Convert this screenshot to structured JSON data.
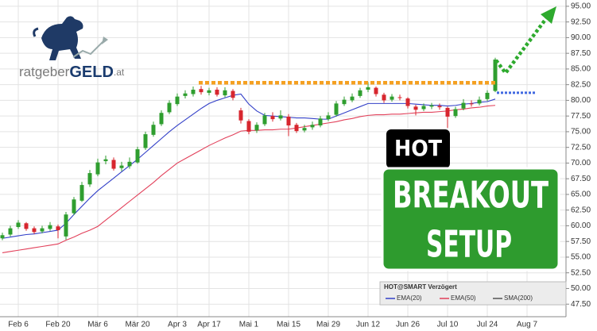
{
  "chart_data": {
    "type": "candlestick",
    "logo": {
      "part1": "ratgeber",
      "part2": "GELD",
      "part3": ".at"
    },
    "badge": "HOT",
    "headline": [
      "BREAKOUT",
      "SETUP"
    ],
    "legend_title": "HOT@SMART Verzögert",
    "categories": [
      null,
      null,
      "Feb 6",
      null,
      null,
      null,
      null,
      "Feb 20",
      null,
      null,
      null,
      null,
      "Mär 6",
      null,
      null,
      null,
      null,
      "Mär 20",
      null,
      null,
      null,
      null,
      "Apr 3",
      null,
      null,
      null,
      "Apr 17",
      null,
      null,
      null,
      null,
      "Mai 1",
      null,
      null,
      null,
      null,
      "Mai 15",
      null,
      null,
      null,
      null,
      "Mai 29",
      null,
      null,
      null,
      null,
      "Jun 12",
      null,
      null,
      null,
      null,
      "Jun 26",
      null,
      null,
      null,
      null,
      "Jul 10",
      null,
      null,
      null,
      null,
      "Jul 24",
      null,
      null,
      null,
      null,
      "Aug 7"
    ],
    "open": [
      58.0,
      58.6,
      59.8,
      60.4,
      59.6,
      59.1,
      59.5,
      59.9,
      58.3,
      62.0,
      64.0,
      66.6,
      68.2,
      70.3,
      70.5,
      69.2,
      69.5,
      70.1,
      72.4,
      74.5,
      76.2,
      78.1,
      79.4,
      80.7,
      81.0,
      81.8,
      81.2,
      81.7,
      80.8,
      81.5,
      78.4,
      76.7,
      75.2,
      76.2,
      77.5,
      77.1,
      77.4,
      76.1,
      75.2,
      75.7,
      76.0,
      77.0,
      77.7,
      79.4,
      80.0,
      80.7,
      81.7,
      82.0,
      80.9,
      80.1,
      80.5,
      80.3,
      79.0,
      78.6,
      79.0,
      79.1,
      78.8,
      77.5,
      78.7,
      79.5,
      79.5,
      80.2,
      81.5,
      null,
      null,
      null,
      null
    ],
    "high": [
      58.9,
      60.0,
      60.9,
      60.6,
      59.9,
      60.0,
      60.6,
      60.2,
      62.2,
      64.6,
      67.0,
      68.9,
      70.7,
      71.2,
      70.9,
      70.2,
      70.9,
      72.6,
      75.0,
      76.6,
      78.4,
      80.0,
      81.1,
      81.6,
      82.2,
      82.3,
      82.0,
      82.1,
      82.1,
      81.8,
      78.8,
      77.0,
      76.5,
      78.0,
      78.1,
      78.4,
      77.8,
      76.4,
      76.1,
      76.6,
      77.5,
      78.1,
      79.9,
      80.6,
      81.1,
      82.0,
      82.9,
      82.2,
      81.2,
      81.0,
      80.9,
      80.5,
      79.3,
      79.5,
      79.6,
      79.5,
      79.0,
      79.0,
      80.2,
      80.0,
      80.6,
      81.6,
      86.8,
      null,
      null,
      null,
      null
    ],
    "low": [
      57.7,
      58.3,
      59.5,
      59.2,
      58.7,
      58.8,
      59.2,
      58.0,
      57.8,
      61.7,
      63.8,
      66.2,
      67.9,
      69.8,
      68.8,
      68.7,
      69.1,
      69.9,
      72.1,
      74.2,
      75.9,
      77.8,
      79.1,
      80.3,
      80.6,
      80.9,
      80.8,
      80.6,
      80.5,
      80.0,
      76.3,
      74.6,
      74.8,
      75.9,
      76.6,
      76.8,
      74.3,
      74.8,
      74.9,
      75.3,
      75.7,
      76.7,
      77.4,
      79.1,
      79.7,
      80.4,
      81.3,
      80.6,
      79.6,
      79.8,
      80.0,
      78.7,
      77.6,
      78.3,
      78.6,
      78.5,
      75.6,
      77.2,
      78.4,
      79.0,
      79.2,
      79.9,
      81.3,
      null,
      null,
      null,
      null
    ],
    "close": [
      58.5,
      59.6,
      60.5,
      59.5,
      59.0,
      59.6,
      60.1,
      59.3,
      61.8,
      64.2,
      66.5,
      68.4,
      70.1,
      70.6,
      69.1,
      69.6,
      70.2,
      72.2,
      74.6,
      76.1,
      78.0,
      79.6,
      80.6,
      81.1,
      81.7,
      81.3,
      81.6,
      80.9,
      81.6,
      80.4,
      76.8,
      75.0,
      76.1,
      77.6,
      77.0,
      77.6,
      76.0,
      75.1,
      75.6,
      76.1,
      77.1,
      77.6,
      79.5,
      80.1,
      80.6,
      81.6,
      82.1,
      81.0,
      80.0,
      80.6,
      80.4,
      79.1,
      78.5,
      79.1,
      79.2,
      78.9,
      77.4,
      78.6,
      79.6,
      79.4,
      80.1,
      81.2,
      86.5,
      null,
      null,
      null,
      null
    ],
    "up_color": "#2f9e2f",
    "down_color": "#d7262e",
    "series": [
      {
        "name": "EMA(20)",
        "color": "#3340c8",
        "values": [
          58.0,
          58.2,
          58.4,
          58.6,
          58.7,
          58.9,
          59.1,
          59.3,
          60.4,
          61.8,
          63.1,
          64.4,
          65.6,
          66.6,
          67.6,
          68.6,
          69.6,
          70.6,
          71.7,
          72.8,
          73.9,
          75.0,
          76.0,
          76.9,
          77.8,
          78.7,
          79.5,
          80.0,
          80.4,
          80.8,
          81.0,
          79.4,
          78.3,
          77.6,
          77.5,
          77.4,
          77.3,
          77.2,
          77.2,
          77.1,
          77.0,
          77.0,
          77.5,
          78.0,
          78.5,
          79.0,
          79.5,
          79.5,
          79.5,
          79.5,
          79.5,
          79.5,
          79.4,
          79.3,
          79.2,
          79.2,
          79.1,
          79.2,
          79.4,
          79.5,
          79.7,
          79.8,
          80.2,
          null,
          null,
          null,
          null
        ]
      },
      {
        "name": "EMA(50)",
        "color": "#e2405a",
        "values": [
          55.7,
          55.9,
          56.1,
          56.3,
          56.5,
          56.7,
          56.9,
          57.1,
          57.7,
          58.2,
          58.8,
          59.3,
          59.9,
          60.9,
          61.9,
          62.9,
          63.9,
          64.9,
          65.9,
          66.9,
          68.0,
          69.0,
          70.0,
          70.7,
          71.4,
          72.1,
          72.8,
          73.4,
          74.0,
          74.5,
          75.1,
          75.2,
          75.2,
          75.3,
          75.3,
          75.4,
          75.4,
          75.6,
          75.8,
          76.0,
          76.2,
          76.4,
          76.6,
          76.9,
          77.1,
          77.4,
          77.6,
          77.7,
          77.7,
          77.8,
          77.8,
          77.9,
          78.0,
          78.1,
          78.1,
          78.2,
          78.3,
          78.5,
          78.6,
          78.8,
          78.9,
          79.1,
          79.2,
          null,
          null,
          null,
          null
        ]
      },
      {
        "name": "SMA(200)",
        "color": "#555555"
      }
    ],
    "levels": [
      {
        "value": 82.8,
        "color": "#f5a020"
      },
      {
        "value": 81.2,
        "color": "#4169e1"
      }
    ],
    "ylim": [
      45.5,
      96
    ],
    "yticks": [
      {
        "value": 47.5,
        "label": "47.50"
      },
      {
        "value": 50,
        "label": "50.00"
      },
      {
        "value": 52.5,
        "label": "52.50"
      },
      {
        "value": 55,
        "label": "55.00"
      },
      {
        "value": 57.5,
        "label": "57.50"
      },
      {
        "value": 60,
        "label": "60.00"
      },
      {
        "value": 62.5,
        "label": "62.50"
      },
      {
        "value": 65,
        "label": "65.00"
      },
      {
        "value": 67.5,
        "label": "67.50"
      },
      {
        "value": 70,
        "label": "70.00"
      },
      {
        "value": 72.5,
        "label": "72.50"
      },
      {
        "value": 75,
        "label": "75.00"
      },
      {
        "value": 77.5,
        "label": "77.50"
      },
      {
        "value": 80,
        "label": "80.00"
      },
      {
        "value": 82.5,
        "label": "82.50"
      },
      {
        "value": 85,
        "label": "85.00"
      },
      {
        "value": 87.5,
        "label": "87.50"
      },
      {
        "value": 90,
        "label": "90.00"
      },
      {
        "value": 92.5,
        "label": "92.50"
      },
      {
        "value": 95,
        "label": "95.00"
      }
    ],
    "grid": true
  }
}
